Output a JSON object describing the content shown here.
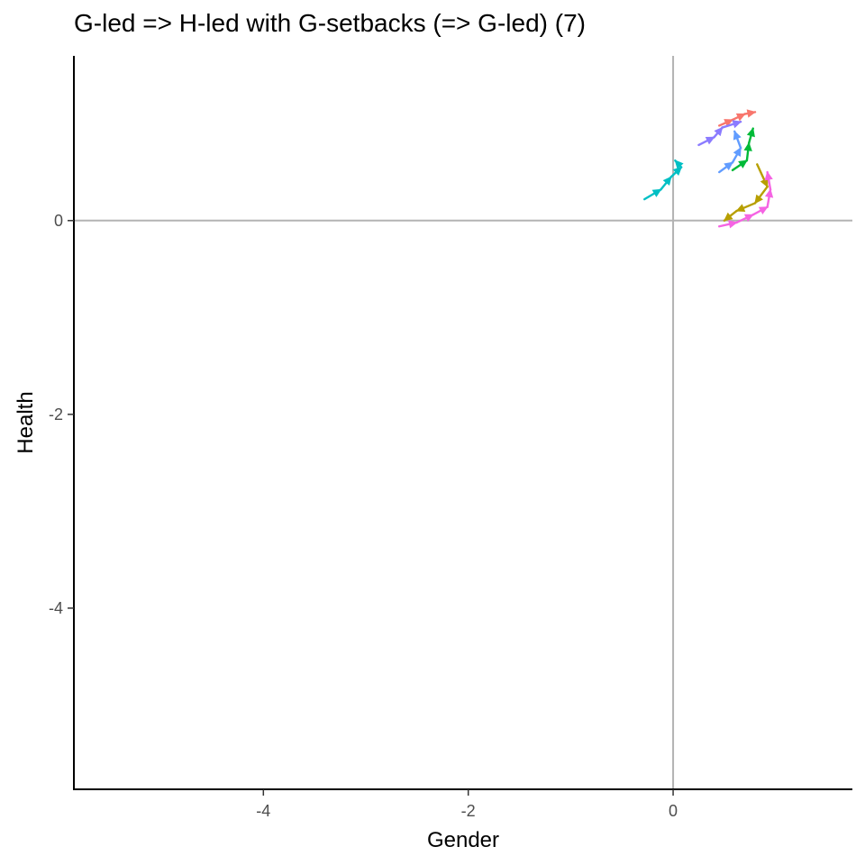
{
  "chart_data": {
    "type": "line",
    "title": "G-led => H-led with G-setbacks (=> G-led) (7)",
    "xlabel": "Gender",
    "ylabel": "Health",
    "xlim": [
      -5.85,
      1.75
    ],
    "ylim": [
      -5.87,
      1.7
    ],
    "x_ticks": [
      -4,
      -2,
      0
    ],
    "y_ticks": [
      -4,
      -2,
      0
    ],
    "reference_lines": {
      "x": 0,
      "y": 0,
      "color": "#b3b3b3"
    },
    "grid": false,
    "legend": "none",
    "series": [
      {
        "color": "#F8766D",
        "points": [
          [
            0.45,
            0.98
          ],
          [
            0.58,
            1.04
          ],
          [
            0.7,
            1.1
          ],
          [
            0.8,
            1.12
          ]
        ]
      },
      {
        "color": "#B79F00",
        "points": [
          [
            0.82,
            0.58
          ],
          [
            0.92,
            0.35
          ],
          [
            0.8,
            0.18
          ],
          [
            0.62,
            0.1
          ],
          [
            0.5,
            0.0
          ]
        ]
      },
      {
        "color": "#00BA38",
        "points": [
          [
            0.58,
            0.52
          ],
          [
            0.72,
            0.62
          ],
          [
            0.74,
            0.8
          ],
          [
            0.78,
            0.95
          ]
        ]
      },
      {
        "color": "#00BFC4",
        "points": [
          [
            -0.28,
            0.22
          ],
          [
            -0.12,
            0.32
          ],
          [
            -0.02,
            0.45
          ],
          [
            0.08,
            0.55
          ],
          [
            0.02,
            0.62
          ]
        ]
      },
      {
        "color": "#619CFF",
        "points": [
          [
            0.45,
            0.5
          ],
          [
            0.58,
            0.6
          ],
          [
            0.66,
            0.75
          ],
          [
            0.6,
            0.92
          ]
        ]
      },
      {
        "color": "#F564E3",
        "points": [
          [
            0.45,
            -0.06
          ],
          [
            0.62,
            -0.02
          ],
          [
            0.78,
            0.06
          ],
          [
            0.92,
            0.14
          ],
          [
            0.95,
            0.32
          ],
          [
            0.92,
            0.5
          ]
        ]
      },
      {
        "color": "#8B7BFF",
        "points": [
          [
            0.25,
            0.78
          ],
          [
            0.4,
            0.86
          ],
          [
            0.48,
            0.96
          ],
          [
            0.66,
            1.02
          ]
        ]
      }
    ]
  }
}
